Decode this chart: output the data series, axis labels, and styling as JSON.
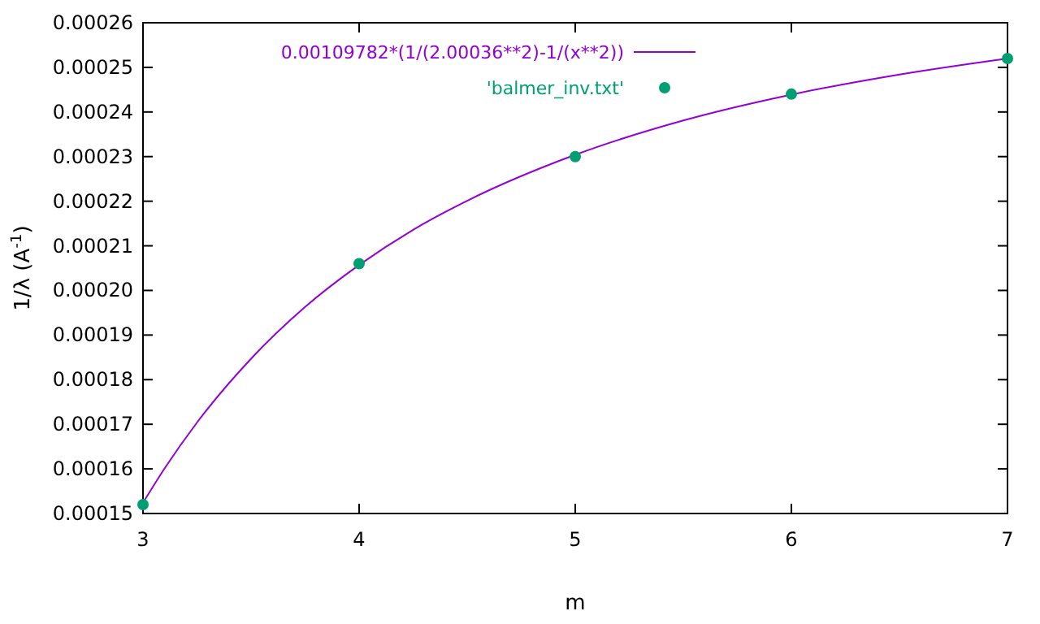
{
  "chart_data": {
    "type": "scatter",
    "xlabel": "m",
    "ylabel": "1/λ (A$^{-1}$)",
    "xlim": [
      3,
      7
    ],
    "xticks": [
      3,
      4,
      5,
      6,
      7
    ],
    "ylim": [
      0.00015,
      0.00026
    ],
    "yticks": [
      {
        "value": 0.00015,
        "label": "0.00015"
      },
      {
        "value": 0.00016,
        "label": "0.00016"
      },
      {
        "value": 0.00017,
        "label": "0.00017"
      },
      {
        "value": 0.00018,
        "label": "0.00018"
      },
      {
        "value": 0.00019,
        "label": "0.00019"
      },
      {
        "value": 0.0002,
        "label": "0.00020"
      },
      {
        "value": 0.00021,
        "label": "0.00021"
      },
      {
        "value": 0.00022,
        "label": "0.00022"
      },
      {
        "value": 0.00023,
        "label": "0.00023"
      },
      {
        "value": 0.00024,
        "label": "0.00024"
      },
      {
        "value": 0.00025,
        "label": "0.00025"
      },
      {
        "value": 0.00026,
        "label": "0.00026"
      }
    ],
    "grid": false,
    "legend": "top",
    "series": [
      {
        "type": "line",
        "name": "0.00109782*(1/(2.00036**2)-1/(x**2))",
        "color": "#9400d3",
        "x": [
          3,
          3.1,
          3.25,
          3.5,
          3.75,
          4,
          4.25,
          4.5,
          5,
          5.5,
          6,
          6.5,
          7
        ],
        "values": [
          0.0001524,
          0.0001601,
          0.0001704,
          0.0001847,
          0.0001963,
          0.0002057,
          0.0002136,
          0.0002201,
          0.0002304,
          0.0002381,
          0.0002439,
          0.0002484,
          0.000252
        ]
      },
      {
        "name": "'balmer_inv.txt'",
        "color": "#009e73",
        "marker": "circle",
        "x": [
          3,
          4,
          5,
          6,
          7
        ],
        "values": [
          0.000152,
          0.000206,
          0.00023,
          0.000244,
          0.000252
        ]
      }
    ]
  }
}
